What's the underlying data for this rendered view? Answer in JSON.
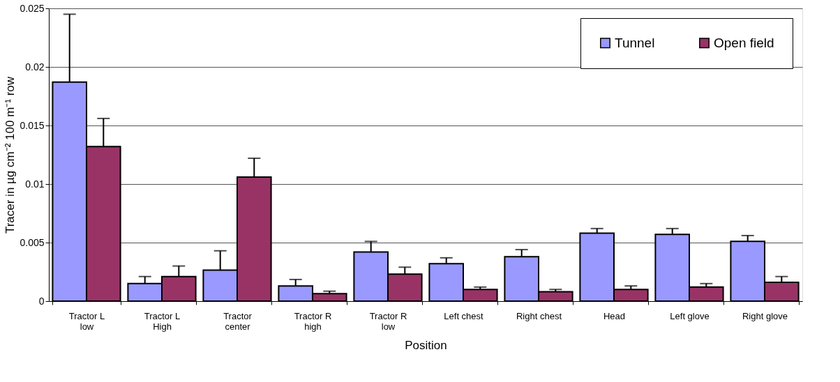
{
  "chart_data": {
    "type": "bar",
    "xlabel": "Position",
    "ylabel": "Tracer in µg cm⁻² 100 m⁻¹ row",
    "categories": [
      "Tractor L low",
      "Tractor L High",
      "Tractor center",
      "Tractor R high",
      "Tractor R low",
      "Left chest",
      "Right chest",
      "Head",
      "Left glove",
      "Right glove"
    ],
    "series": [
      {
        "name": "Tunnel",
        "color": "#9999ff",
        "values": [
          0.0187,
          0.0015,
          0.00265,
          0.0013,
          0.0042,
          0.0032,
          0.0038,
          0.0058,
          0.0057,
          0.0051
        ],
        "errors": [
          [
            0.0187,
            0.0245
          ],
          [
            0.0015,
            0.0021
          ],
          [
            0.00265,
            0.0043
          ],
          [
            0.0013,
            0.00185
          ],
          [
            0.0042,
            0.0051
          ],
          [
            0.0032,
            0.0037
          ],
          [
            0.0038,
            0.0044
          ],
          [
            0.0058,
            0.0062
          ],
          [
            0.0057,
            0.0062
          ],
          [
            0.0051,
            0.0056
          ]
        ]
      },
      {
        "name": "Open field",
        "color": "#993366",
        "values": [
          0.0132,
          0.0021,
          0.0106,
          0.00064,
          0.0023,
          0.001,
          0.0008,
          0.001,
          0.0012,
          0.0016
        ],
        "errors": [
          [
            0.0132,
            0.0156
          ],
          [
            0.0021,
            0.003
          ],
          [
            0.0106,
            0.0122
          ],
          [
            0.00064,
            0.00085
          ],
          [
            0.0023,
            0.0029
          ],
          [
            0.001,
            0.0012
          ],
          [
            0.0008,
            0.001
          ],
          [
            0.001,
            0.0013
          ],
          [
            0.0012,
            0.0015
          ],
          [
            0.0016,
            0.0021
          ]
        ]
      }
    ],
    "ylim": [
      0,
      0.025
    ],
    "yticks": [
      0,
      0.005,
      0.01,
      0.015,
      0.02,
      0.025
    ],
    "grid": "y",
    "legend": "top right"
  }
}
